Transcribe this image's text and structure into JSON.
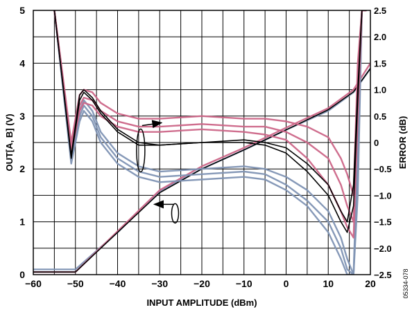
{
  "chart_data": {
    "type": "line",
    "title": "",
    "xlabel": "INPUT AMPLITUDE (dBm)",
    "ylabel_left": "OUT[A, B] (V)",
    "ylabel_right": "ERROR (dB)",
    "xlim": [
      -60,
      20
    ],
    "ylim_left": [
      0,
      5
    ],
    "ylim_right": [
      -2.5,
      2.5
    ],
    "x_ticks": [
      -60,
      -50,
      -40,
      -30,
      -20,
      -10,
      0,
      10,
      20
    ],
    "x_tick_labels": [
      "−60",
      "−50",
      "−40",
      "−30",
      "−20",
      "−10",
      "0",
      "10",
      "20"
    ],
    "y_left_ticks": [
      0,
      1,
      2,
      3,
      4,
      5
    ],
    "y_left_tick_labels": [
      "0",
      "1",
      "2",
      "3",
      "4",
      "5"
    ],
    "y_right_ticks": [
      2.5,
      2.0,
      1.5,
      1.0,
      0.5,
      0,
      -0.5,
      -1.0,
      -1.5,
      -2.0,
      -2.5
    ],
    "y_right_tick_labels": [
      "2.5",
      "2.0",
      "1.5",
      "1.0",
      "0.5",
      "0",
      "−0.5",
      "−1.0",
      "−1.5",
      "−2.0",
      "−2.5"
    ],
    "grid": true,
    "series_colors": {
      "blue": "#7f93b4",
      "pink": "#cc6688",
      "black": "#000000"
    },
    "output_voltage_curves": {
      "axis": "left",
      "x": [
        -60,
        -52,
        -50,
        -40,
        -30,
        -20,
        -10,
        0,
        10,
        16,
        20
      ],
      "series": [
        {
          "color": "pink",
          "values": [
            0.05,
            0.05,
            0.05,
            0.82,
            1.6,
            2.05,
            2.4,
            2.78,
            3.15,
            3.5,
            4.0
          ]
        },
        {
          "color": "blue",
          "values": [
            0.1,
            0.1,
            0.1,
            0.8,
            1.58,
            2.0,
            2.36,
            2.74,
            3.1,
            3.45,
            3.9
          ]
        },
        {
          "color": "black",
          "values": [
            0.05,
            0.05,
            0.05,
            0.8,
            1.55,
            2.0,
            2.36,
            2.74,
            3.12,
            3.46,
            3.9
          ]
        }
      ]
    },
    "error_curves": {
      "axis": "right",
      "x": [
        -55,
        -51,
        -49,
        -48,
        -46,
        -44,
        -40,
        -35,
        -30,
        -20,
        -10,
        -5,
        0,
        5,
        10,
        13,
        14.5,
        16,
        17,
        18,
        19
      ],
      "series": [
        {
          "color": "pink",
          "values": [
            2.5,
            0.0,
            0.9,
            1.0,
            0.95,
            0.75,
            0.55,
            0.45,
            0.45,
            0.5,
            0.45,
            0.45,
            0.4,
            0.3,
            0.1,
            -0.3,
            -0.6,
            -1.0,
            1.5,
            2.5,
            2.5
          ]
        },
        {
          "color": "pink",
          "values": [
            2.5,
            -0.1,
            0.7,
            0.85,
            0.8,
            0.6,
            0.4,
            0.3,
            0.3,
            0.35,
            0.3,
            0.3,
            0.2,
            0.0,
            -0.3,
            -0.8,
            -1.2,
            -1.5,
            1.0,
            2.5,
            2.5
          ]
        },
        {
          "color": "pink",
          "values": [
            2.5,
            -0.2,
            0.6,
            0.75,
            0.7,
            0.5,
            0.3,
            0.2,
            0.2,
            0.25,
            0.2,
            0.15,
            0.05,
            -0.3,
            -0.8,
            -1.3,
            -1.6,
            -1.8,
            0.5,
            2.5,
            2.5
          ]
        },
        {
          "color": "blue",
          "values": [
            2.5,
            -0.2,
            0.6,
            0.8,
            0.6,
            0.2,
            -0.2,
            -0.45,
            -0.55,
            -0.5,
            -0.45,
            -0.5,
            -0.65,
            -0.9,
            -1.3,
            -1.8,
            -2.2,
            -2.5,
            0.0,
            2.5,
            2.5
          ]
        },
        {
          "color": "blue",
          "values": [
            2.5,
            -0.3,
            0.5,
            0.7,
            0.5,
            0.1,
            -0.3,
            -0.55,
            -0.65,
            -0.6,
            -0.55,
            -0.6,
            -0.8,
            -1.1,
            -1.5,
            -2.0,
            -2.4,
            -2.5,
            -0.5,
            2.5,
            2.5
          ]
        },
        {
          "color": "blue",
          "values": [
            2.5,
            -0.4,
            0.4,
            0.6,
            0.4,
            0.0,
            -0.4,
            -0.65,
            -0.75,
            -0.7,
            -0.65,
            -0.7,
            -0.9,
            -1.2,
            -1.7,
            -2.2,
            -2.5,
            -2.5,
            -1.0,
            2.5,
            2.5
          ]
        },
        {
          "color": "black",
          "values": [
            2.5,
            -0.25,
            0.9,
            1.0,
            0.85,
            0.6,
            0.25,
            0.0,
            -0.05,
            0.0,
            0.05,
            0.0,
            -0.1,
            -0.4,
            -0.8,
            -1.3,
            -1.5,
            -0.8,
            1.0,
            2.5,
            2.5
          ]
        },
        {
          "color": "black",
          "values": [
            2.5,
            -0.3,
            0.8,
            0.95,
            0.8,
            0.55,
            0.2,
            -0.05,
            -0.05,
            0.0,
            0.0,
            -0.05,
            -0.2,
            -0.55,
            -1.0,
            -1.5,
            -1.7,
            -1.2,
            0.8,
            2.5,
            2.5
          ]
        }
      ]
    },
    "annotations": [
      {
        "text": "",
        "meaning": "loop with arrow pointing right (error curves read on right axis)",
        "x": -35,
        "y_left": 2.35
      },
      {
        "text": "",
        "meaning": "loop with arrow pointing left (output curves read on left axis)",
        "x": -27,
        "y_left": 1.2
      }
    ],
    "figure_id": "05334-078"
  }
}
